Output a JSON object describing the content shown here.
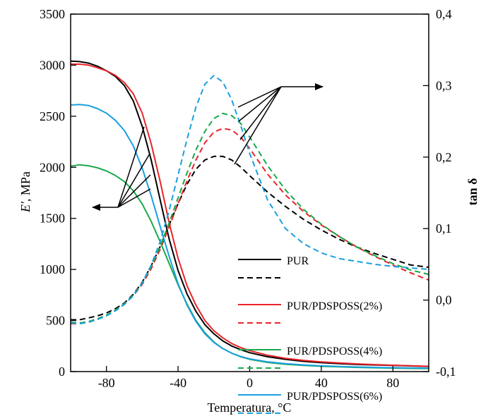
{
  "chart_data": {
    "type": "line",
    "xlabel": "Temperatura, °C",
    "ylabel_left": "E', MPa",
    "ylabel_right": "tan δ",
    "xlim": [
      -100,
      100
    ],
    "ylim_left": [
      0,
      3500
    ],
    "ylim_right": [
      -0.1,
      0.4
    ],
    "x_ticks": [
      -80,
      -40,
      0,
      40,
      80
    ],
    "x_tick_labels": [
      "-80",
      "-40",
      "0",
      "40",
      "80"
    ],
    "y_left_ticks": [
      0,
      500,
      1000,
      1500,
      2000,
      2500,
      3000,
      3500
    ],
    "y_left_tick_labels": [
      "0",
      "500",
      "1000",
      "1500",
      "2000",
      "2500",
      "3000",
      "3500"
    ],
    "y_right_ticks": [
      -0.1,
      0.0,
      0.1,
      0.2,
      0.3,
      0.4
    ],
    "y_right_tick_labels": [
      "-0,1",
      "0,0",
      "0,1",
      "0,2",
      "0,3",
      "0,4"
    ],
    "grid": false,
    "legend_position": "bottom-right",
    "series": [
      {
        "name": "PUR",
        "axis": "left",
        "style": "solid",
        "color": "#000000",
        "x": [
          -100,
          -95,
          -90,
          -85,
          -80,
          -75,
          -70,
          -65,
          -60,
          -55,
          -50,
          -45,
          -40,
          -35,
          -30,
          -25,
          -20,
          -15,
          -10,
          -5,
          0,
          10,
          20,
          30,
          40,
          50,
          60,
          70,
          80,
          90,
          100
        ],
        "y": [
          3040,
          3035,
          3020,
          2990,
          2945,
          2890,
          2800,
          2650,
          2400,
          2070,
          1680,
          1300,
          990,
          760,
          590,
          460,
          370,
          300,
          250,
          215,
          185,
          145,
          120,
          100,
          87,
          77,
          70,
          65,
          60,
          55,
          50
        ]
      },
      {
        "name": "PUR",
        "axis": "right",
        "style": "dashed",
        "color": "#000000",
        "x": [
          -100,
          -95,
          -90,
          -85,
          -80,
          -75,
          -70,
          -65,
          -60,
          -55,
          -50,
          -45,
          -40,
          -35,
          -30,
          -25,
          -20,
          -15,
          -10,
          -5,
          0,
          10,
          20,
          30,
          40,
          50,
          60,
          70,
          80,
          90,
          100
        ],
        "y": [
          -0.0275,
          -0.0275,
          -0.025,
          -0.022,
          -0.018,
          -0.012,
          -0.004,
          0.008,
          0.025,
          0.048,
          0.075,
          0.105,
          0.135,
          0.162,
          0.183,
          0.196,
          0.201,
          0.201,
          0.196,
          0.186,
          0.174,
          0.151,
          0.131,
          0.113,
          0.098,
          0.085,
          0.074,
          0.065,
          0.057,
          0.049,
          0.046
        ]
      },
      {
        "name": "PUR/PDSPOSS(2%)",
        "axis": "left",
        "style": "solid",
        "color": "#e8242a",
        "x": [
          -100,
          -95,
          -90,
          -85,
          -80,
          -75,
          -70,
          -65,
          -60,
          -55,
          -50,
          -45,
          -40,
          -35,
          -30,
          -25,
          -20,
          -15,
          -10,
          -5,
          0,
          10,
          20,
          30,
          40,
          50,
          60,
          70,
          80,
          90,
          100
        ],
        "y": [
          3010,
          3010,
          3000,
          2975,
          2945,
          2900,
          2830,
          2720,
          2530,
          2230,
          1860,
          1460,
          1110,
          840,
          650,
          500,
          400,
          330,
          275,
          235,
          205,
          160,
          130,
          110,
          95,
          84,
          75,
          68,
          62,
          57,
          52
        ]
      },
      {
        "name": "PUR/PDSPOSS(2%)",
        "axis": "right",
        "style": "dashed",
        "color": "#e8242a",
        "x": [
          -100,
          -95,
          -90,
          -85,
          -80,
          -75,
          -70,
          -65,
          -60,
          -55,
          -50,
          -45,
          -40,
          -35,
          -30,
          -25,
          -20,
          -15,
          -10,
          -5,
          0,
          10,
          20,
          30,
          40,
          50,
          60,
          70,
          80,
          90,
          100
        ],
        "y": [
          -0.033,
          -0.033,
          -0.031,
          -0.027,
          -0.022,
          -0.015,
          -0.006,
          0.006,
          0.022,
          0.044,
          0.071,
          0.102,
          0.135,
          0.167,
          0.196,
          0.22,
          0.235,
          0.24,
          0.238,
          0.228,
          0.212,
          0.176,
          0.147,
          0.124,
          0.105,
          0.089,
          0.074,
          0.061,
          0.049,
          0.038,
          0.028
        ]
      },
      {
        "name": "PUR/PDSPOSS(4%)",
        "axis": "left",
        "style": "solid",
        "color": "#1aa84a",
        "x": [
          -100,
          -95,
          -90,
          -85,
          -80,
          -75,
          -70,
          -65,
          -60,
          -55,
          -50,
          -45,
          -40,
          -35,
          -30,
          -25,
          -20,
          -15,
          -10,
          -5,
          0,
          10,
          20,
          30,
          40,
          50,
          60,
          70,
          80,
          90,
          100
        ],
        "y": [
          2010,
          2025,
          2015,
          1995,
          1965,
          1920,
          1860,
          1770,
          1640,
          1470,
          1270,
          1060,
          850,
          660,
          500,
          380,
          290,
          225,
          180,
          145,
          120,
          90,
          72,
          60,
          52,
          46,
          41,
          37,
          34,
          31,
          29
        ]
      },
      {
        "name": "PUR/PDSPOSS(4%)",
        "axis": "right",
        "style": "dashed",
        "color": "#1aa84a",
        "x": [
          -100,
          -95,
          -90,
          -85,
          -80,
          -75,
          -70,
          -65,
          -60,
          -55,
          -50,
          -45,
          -40,
          -35,
          -30,
          -25,
          -20,
          -15,
          -10,
          -5,
          0,
          10,
          20,
          30,
          40,
          50,
          60,
          70,
          80,
          90,
          100
        ],
        "y": [
          -0.031,
          -0.032,
          -0.03,
          -0.026,
          -0.021,
          -0.014,
          -0.005,
          0.007,
          0.024,
          0.047,
          0.075,
          0.108,
          0.143,
          0.178,
          0.21,
          0.236,
          0.254,
          0.261,
          0.258,
          0.247,
          0.228,
          0.188,
          0.154,
          0.127,
          0.106,
          0.089,
          0.074,
          0.062,
          0.051,
          0.042,
          0.036
        ]
      },
      {
        "name": "PUR/PDSPOSS(6%)",
        "axis": "left",
        "style": "solid",
        "color": "#1a9fe0",
        "x": [
          -100,
          -95,
          -90,
          -85,
          -80,
          -75,
          -70,
          -65,
          -60,
          -55,
          -50,
          -45,
          -40,
          -35,
          -30,
          -25,
          -20,
          -15,
          -10,
          -5,
          0,
          10,
          20,
          30,
          40,
          50,
          60,
          70,
          80,
          90,
          100
        ],
        "y": [
          2610,
          2615,
          2605,
          2575,
          2530,
          2460,
          2360,
          2210,
          1990,
          1720,
          1420,
          1130,
          860,
          650,
          490,
          370,
          285,
          225,
          180,
          148,
          124,
          95,
          77,
          65,
          56,
          50,
          45,
          41,
          38,
          35,
          33
        ]
      },
      {
        "name": "PUR/PDSPOSS(6%)",
        "axis": "right",
        "style": "dashed",
        "color": "#1a9fe0",
        "x": [
          -100,
          -95,
          -90,
          -85,
          -80,
          -75,
          -70,
          -65,
          -60,
          -55,
          -50,
          -45,
          -40,
          -35,
          -30,
          -25,
          -20,
          -15,
          -10,
          -5,
          0,
          10,
          20,
          30,
          40,
          50,
          60,
          70,
          80,
          90,
          100
        ],
        "y": [
          -0.032,
          -0.033,
          -0.031,
          -0.027,
          -0.022,
          -0.015,
          -0.006,
          0.006,
          0.024,
          0.049,
          0.082,
          0.125,
          0.175,
          0.225,
          0.27,
          0.302,
          0.314,
          0.305,
          0.28,
          0.244,
          0.205,
          0.14,
          0.1,
          0.079,
          0.066,
          0.058,
          0.054,
          0.05,
          0.047,
          0.045,
          0.043
        ]
      }
    ],
    "legend": [
      {
        "label": "PUR",
        "color": "#000000"
      },
      {
        "label": "PUR/PDSPOSS(2%)",
        "color": "#e8242a"
      },
      {
        "label": "PUR/PDSPOSS(4%)",
        "color": "#1aa84a"
      },
      {
        "label": "PUR/PDSPOSS(6%)",
        "color": "#1a9fe0"
      }
    ]
  }
}
